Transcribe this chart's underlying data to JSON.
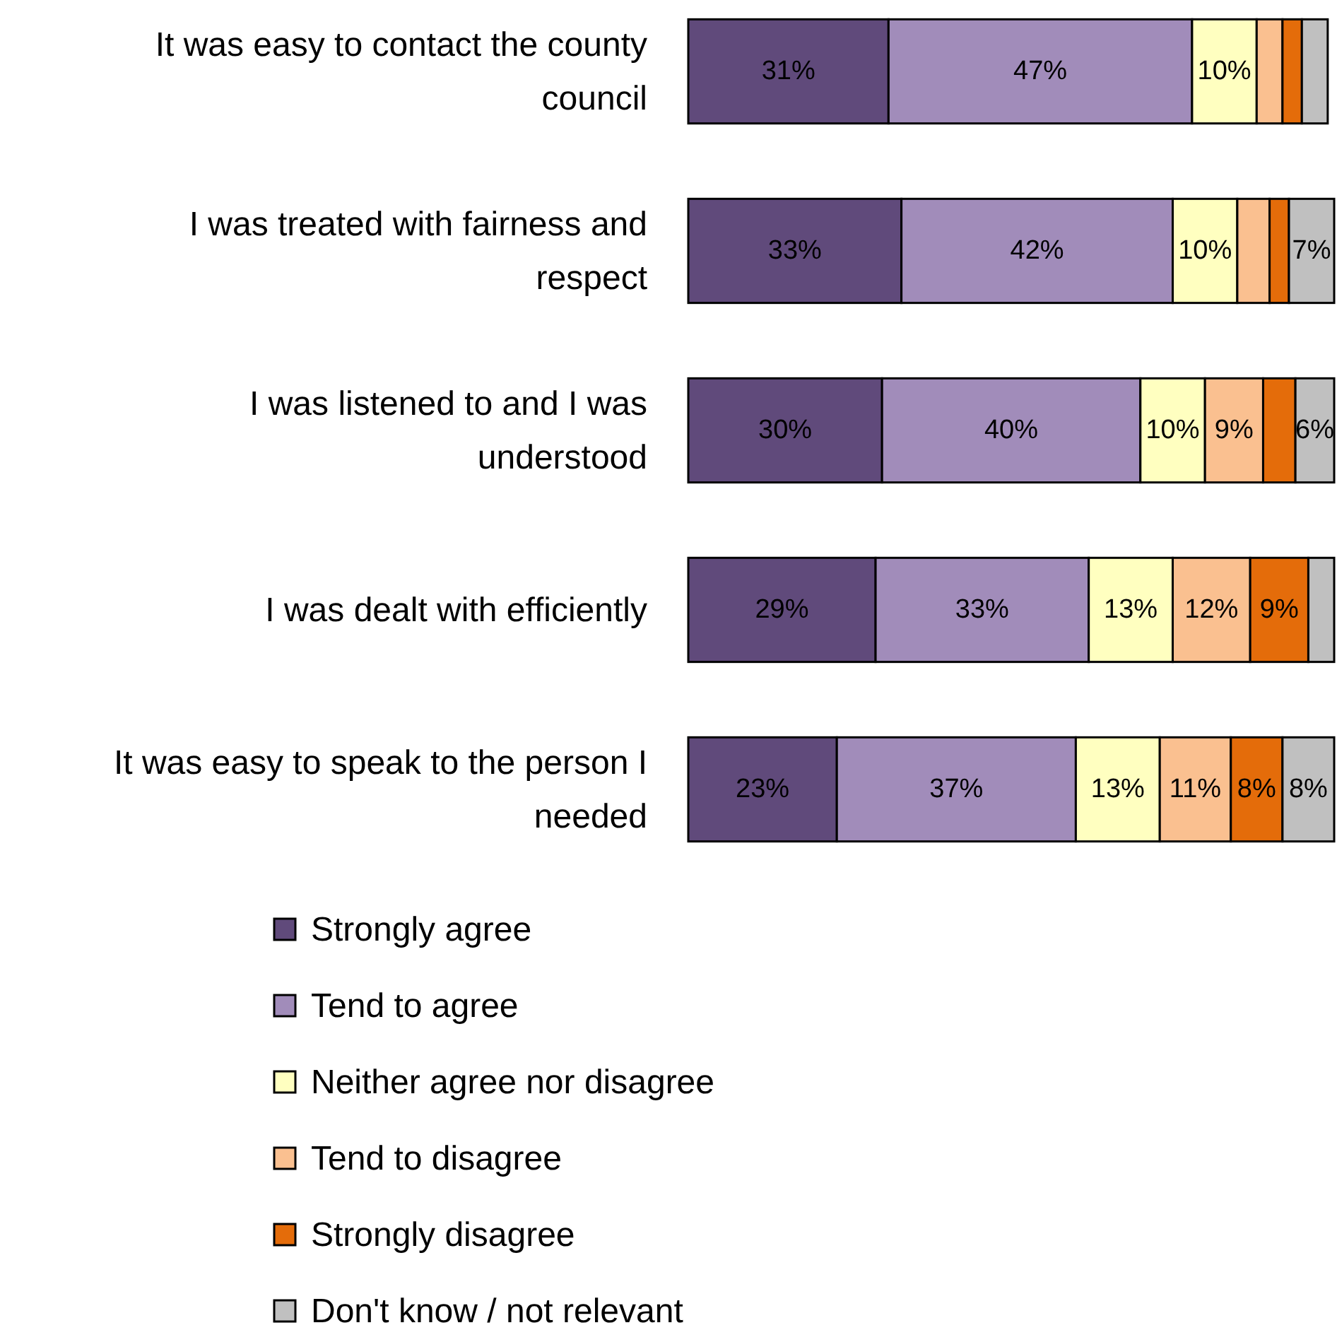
{
  "chart_data": {
    "type": "bar",
    "orientation": "horizontal",
    "stacked": true,
    "xlim": [
      0,
      100
    ],
    "legend": "bottom",
    "categories": [
      "It was easy to contact the county council",
      "I was treated with fairness and respect",
      "I was listened to and I was understood",
      "I was dealt with efficiently",
      "It was easy to speak to the person I needed"
    ],
    "series": [
      {
        "name": "Strongly agree",
        "color": "#604a7b",
        "values": [
          31,
          33,
          30,
          29,
          23
        ],
        "value_labels": [
          "31%",
          "33%",
          "30%",
          "29%",
          "23%"
        ]
      },
      {
        "name": "Tend to agree",
        "color": "#a18cba",
        "values": [
          47,
          42,
          40,
          33,
          37
        ],
        "value_labels": [
          "47%",
          "42%",
          "40%",
          "33%",
          "37%"
        ]
      },
      {
        "name": "Neither agree nor disagree",
        "color": "#ffffc0",
        "values": [
          10,
          10,
          10,
          13,
          13
        ],
        "value_labels": [
          "10%",
          "10%",
          "10%",
          "13%",
          "13%"
        ]
      },
      {
        "name": "Tend to disagree",
        "color": "#fac090",
        "values": [
          4,
          5,
          9,
          12,
          11
        ],
        "value_labels": [
          null,
          null,
          "9%",
          "12%",
          "11%"
        ]
      },
      {
        "name": "Strongly disagree",
        "color": "#e46c0a",
        "values": [
          3,
          3,
          5,
          9,
          8
        ],
        "value_labels": [
          null,
          null,
          null,
          "9%",
          "8%"
        ]
      },
      {
        "name": "Don't know / not relevant",
        "color": "#c0c0c0",
        "values": [
          4,
          7,
          6,
          4,
          8
        ],
        "value_labels": [
          null,
          "7%",
          "6%",
          null,
          "8%"
        ]
      }
    ]
  }
}
